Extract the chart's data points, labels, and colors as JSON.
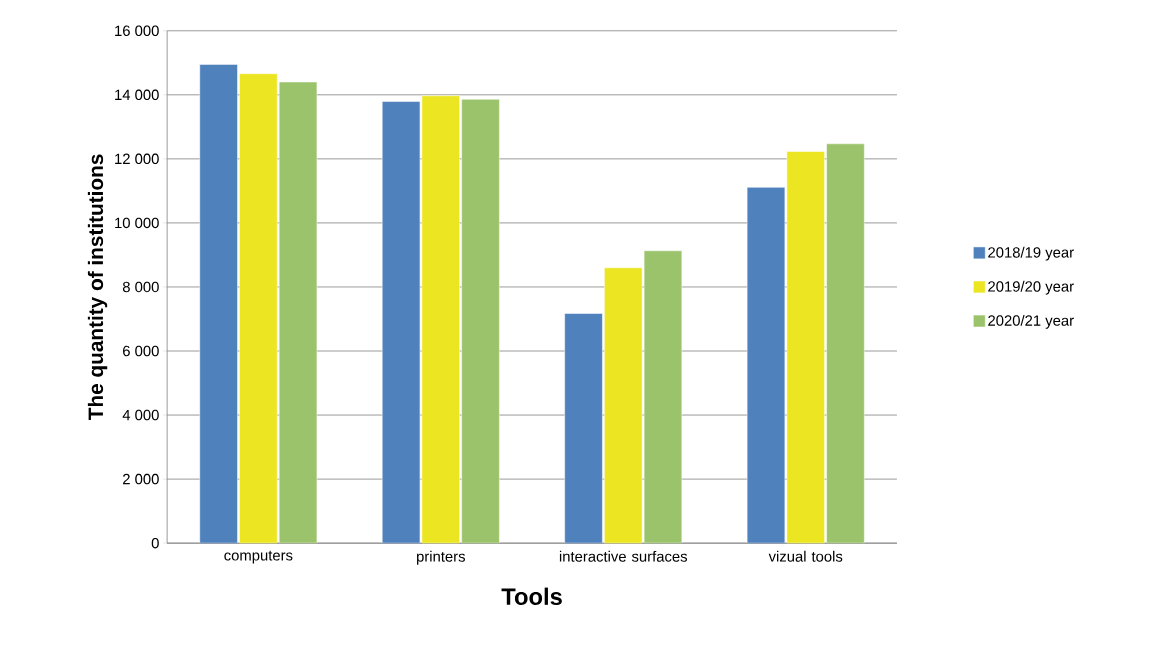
{
  "chart_data": {
    "type": "bar",
    "xlabel": "Tools",
    "ylabel": "The quantity of institutions",
    "categories": [
      "computers",
      "printers",
      "interactive surfaces",
      "vizual tools"
    ],
    "series": [
      {
        "name": "2018/19 year",
        "color": "#4f81bd",
        "values": [
          14950,
          13790,
          7170,
          11110
        ]
      },
      {
        "name": "2019/20 year",
        "color": "#ebe621",
        "values": [
          14660,
          13970,
          8600,
          12230
        ]
      },
      {
        "name": "2020/21 year",
        "color": "#9bc36b",
        "values": [
          14400,
          13860,
          9130,
          12470
        ]
      }
    ],
    "ylim": [
      0,
      16000
    ],
    "yticks": [
      0,
      {
        "value": 2000,
        "label": "2 000"
      },
      {
        "value": 4000,
        "label": "4 000"
      },
      {
        "value": 6000,
        "label": "6 000"
      },
      {
        "value": 8000,
        "label": "8 000"
      },
      {
        "value": 10000,
        "label": "10 000"
      },
      {
        "value": 12000,
        "label": "12 000"
      },
      {
        "value": 14000,
        "label": "14 000"
      },
      {
        "value": 16000,
        "label": "16 000"
      }
    ],
    "grid": "y",
    "legend": "right"
  }
}
